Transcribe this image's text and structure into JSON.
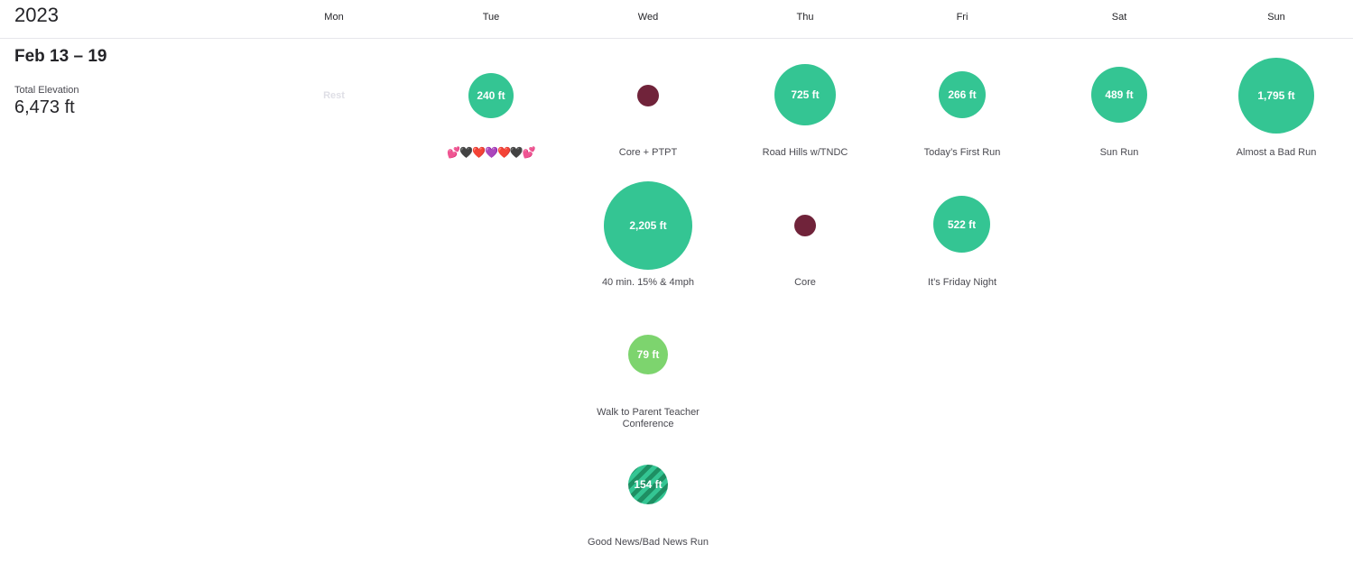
{
  "year": "2023",
  "days": [
    "Mon",
    "Tue",
    "Wed",
    "Thu",
    "Fri",
    "Sat",
    "Sun"
  ],
  "week": {
    "range": "Feb 13 – 19",
    "metric_label": "Total Elevation",
    "metric_value": "6,473 ft",
    "rest_label": "Rest"
  },
  "colors": {
    "run": "#34c593",
    "walk": "#7dd46e",
    "workout": "#70233a"
  },
  "activities": {
    "tue_1": {
      "value": "240 ft",
      "name": "💕🖤❤️💜❤️🖤💕",
      "type": "run"
    },
    "wed_1": {
      "value": "",
      "name": "Core + PTPT",
      "type": "workout"
    },
    "wed_2": {
      "value": "2,205 ft",
      "name": "40 min. 15% & 4mph",
      "type": "run"
    },
    "wed_3": {
      "value": "79 ft",
      "name": "Walk to Parent Teacher Conference",
      "type": "walk"
    },
    "wed_4": {
      "value": "154 ft",
      "name": "Good News/Bad News Run",
      "type": "run-striped"
    },
    "thu_1": {
      "value": "725 ft",
      "name": "Road Hills w/TNDC",
      "type": "run"
    },
    "thu_2": {
      "value": "",
      "name": "Core",
      "type": "workout"
    },
    "fri_1": {
      "value": "266 ft",
      "name": "Today’s First Run",
      "type": "run"
    },
    "fri_2": {
      "value": "522 ft",
      "name": "It’s Friday Night",
      "type": "run"
    },
    "sat_1": {
      "value": "489 ft",
      "name": "Sun Run",
      "type": "run"
    },
    "sun_1": {
      "value": "1,795 ft",
      "name": "Almost a Bad Run",
      "type": "run"
    }
  }
}
